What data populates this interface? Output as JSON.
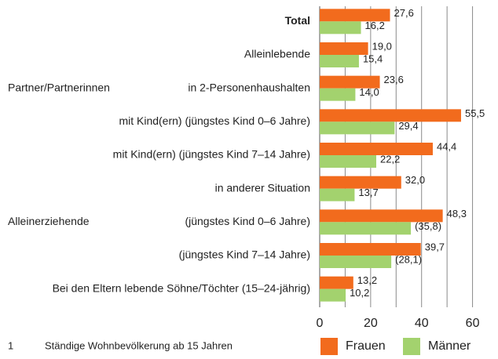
{
  "chart_data": {
    "type": "bar",
    "orientation": "horizontal",
    "categories": [
      "Total",
      "Alleinlebende",
      "in 2-Personenhaushalten",
      "mit Kind(ern) (jüngstes Kind 0–6 Jahre)",
      "mit Kind(ern) (jüngstes Kind 7–14 Jahre)",
      "in anderer Situation",
      "(jüngstes Kind 0–6 Jahre)",
      "(jüngstes Kind 7–14 Jahre)",
      "Bei den Eltern lebende Söhne/Töchter (15–24-jährig)"
    ],
    "group_labels": [
      null,
      null,
      "Partner/Partnerinnen",
      null,
      null,
      null,
      "Alleinerziehende",
      null,
      null
    ],
    "series": [
      {
        "name": "Frauen",
        "color": "#f26b1d",
        "values": [
          27.6,
          19.0,
          23.6,
          55.5,
          44.4,
          32.0,
          48.3,
          39.7,
          13.2
        ],
        "value_labels": [
          "27,6",
          "19,0",
          "23,6",
          "55,5",
          "44,4",
          "32,0",
          "48,3",
          "39,7",
          "13,2"
        ]
      },
      {
        "name": "Männer",
        "color": "#a3d26e",
        "values": [
          16.2,
          15.4,
          14.0,
          29.4,
          22.2,
          13.7,
          35.8,
          28.1,
          10.2
        ],
        "value_labels": [
          "16,2",
          "15,4",
          "14,0",
          "29,4",
          "22,2",
          "13,7",
          "(35,8)",
          "(28,1)",
          "10,2"
        ]
      }
    ],
    "xlim": [
      0,
      70
    ],
    "xticks": [
      0,
      20,
      40,
      60
    ],
    "xgrid": [
      10,
      20,
      30,
      40,
      50,
      60
    ],
    "footnote": {
      "number": "1",
      "text": "Ständige Wohnbevölkerung ab 15 Jahren"
    }
  }
}
